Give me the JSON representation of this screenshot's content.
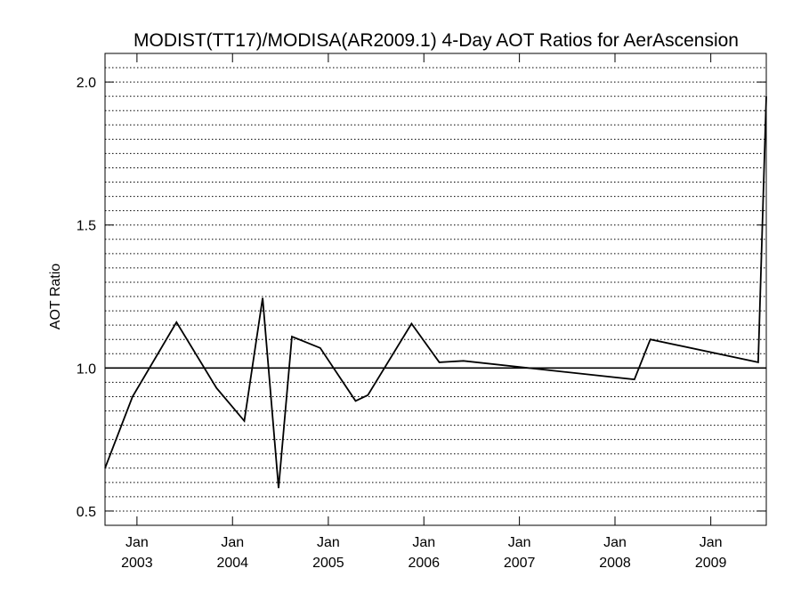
{
  "chart_data": {
    "type": "line",
    "title": "MODIST(TT17)/MODISA(AR2009.1) 4-Day AOT Ratios for AerAscension",
    "xlabel": "",
    "ylabel": "AOT Ratio",
    "x_ticks": [
      {
        "date": "2003-01-01",
        "month": "Jan",
        "year": "2003"
      },
      {
        "date": "2004-01-01",
        "month": "Jan",
        "year": "2004"
      },
      {
        "date": "2005-01-01",
        "month": "Jan",
        "year": "2005"
      },
      {
        "date": "2006-01-01",
        "month": "Jan",
        "year": "2006"
      },
      {
        "date": "2007-01-01",
        "month": "Jan",
        "year": "2007"
      },
      {
        "date": "2008-01-01",
        "month": "Jan",
        "year": "2008"
      },
      {
        "date": "2009-01-01",
        "month": "Jan",
        "year": "2009"
      }
    ],
    "y_ticks": [
      "0.5",
      "1.0",
      "1.5",
      "2.0"
    ],
    "xlim": [
      "2002-09-01",
      "2009-08-01"
    ],
    "ylim": [
      0.45,
      2.1
    ],
    "reference_line": 1.0,
    "grid": "horizontal dotted",
    "series": [
      {
        "color": "#000000",
        "x": [
          "2002-09-01",
          "2002-12-15",
          "2003-06-01",
          "2003-11-01",
          "2004-02-15",
          "2004-04-25",
          "2004-06-25",
          "2004-08-15",
          "2004-12-01",
          "2005-04-15",
          "2005-06-01",
          "2005-11-15",
          "2006-03-01",
          "2006-06-01",
          "2008-03-15",
          "2008-05-15",
          "2009-07-01",
          "2009-08-01"
        ],
        "y": [
          0.65,
          0.9,
          1.16,
          0.93,
          0.815,
          1.245,
          0.58,
          1.11,
          1.07,
          0.885,
          0.905,
          1.155,
          1.02,
          1.025,
          0.96,
          1.1,
          1.02,
          1.95
        ]
      }
    ]
  }
}
